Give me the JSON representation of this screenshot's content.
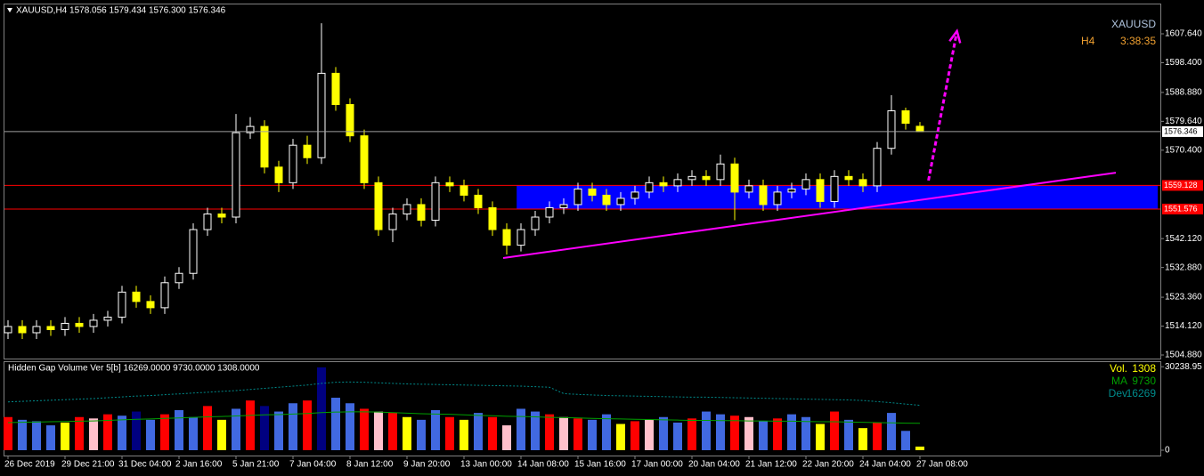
{
  "chart_data": [
    {
      "type": "candlestick",
      "title": "XAUUSD,H4 1578.056 1579.434 1576.300 1576.346",
      "symbol": "XAUUSD",
      "timeframe": "H4",
      "timer": "3:38:35",
      "categories": [
        "26 Dec 2019",
        null,
        null,
        null,
        "29 Dec 21:00",
        null,
        null,
        null,
        "31 Dec 04:00",
        null,
        null,
        null,
        "2 Jan 16:00",
        null,
        null,
        null,
        "5 Jan 21:00",
        null,
        null,
        null,
        "7 Jan 04:00",
        null,
        null,
        null,
        "8 Jan 12:00",
        null,
        null,
        null,
        "9 Jan 20:00",
        null,
        null,
        null,
        "13 Jan 00:00",
        null,
        null,
        null,
        "14 Jan 08:00",
        null,
        null,
        null,
        "15 Jan 16:00",
        null,
        null,
        null,
        "17 Jan 00:00",
        null,
        null,
        null,
        "20 Jan 04:00",
        null,
        null,
        null,
        "21 Jan 12:00",
        null,
        null,
        null,
        "22 Jan 20:00",
        null,
        null,
        null,
        "24 Jan 04:00",
        null,
        null,
        null,
        "27 Jan 08:00"
      ],
      "open": [
        1512,
        1514,
        1512,
        1514,
        1513,
        1515,
        1514,
        1516,
        1517,
        1525,
        1522,
        1520,
        1528,
        1531,
        1545,
        1550,
        1549,
        1576,
        1578,
        1565,
        1560,
        1572,
        1568,
        1595,
        1585,
        1575,
        1560,
        1545,
        1550,
        1553,
        1548,
        1560,
        1559,
        1556,
        1552,
        1545,
        1540,
        1545,
        1549,
        1552,
        1553,
        1558,
        1556,
        1553,
        1555,
        1557,
        1560,
        1559,
        1561,
        1562,
        1561,
        1566,
        1557,
        1559,
        1553,
        1557,
        1558,
        1561,
        1554,
        1562,
        1561,
        1559,
        1571,
        1583,
        1578.056
      ],
      "high": [
        1516,
        1516,
        1516,
        1516,
        1517,
        1517,
        1518,
        1519,
        1527,
        1527,
        1524,
        1530,
        1533,
        1547,
        1552,
        1552,
        1582,
        1581,
        1580,
        1567,
        1574,
        1575,
        1611,
        1597,
        1587,
        1577,
        1562,
        1552,
        1555,
        1555,
        1562,
        1562,
        1561,
        1558,
        1554,
        1547,
        1547,
        1551,
        1554,
        1555,
        1560,
        1560,
        1558,
        1557,
        1559,
        1562,
        1562,
        1563,
        1564,
        1564,
        1569,
        1568,
        1561,
        1561,
        1559,
        1560,
        1563,
        1563,
        1564,
        1564,
        1563,
        1573,
        1588,
        1584,
        1579.434
      ],
      "low": [
        1510,
        1510,
        1510,
        1511,
        1511,
        1512,
        1512,
        1514,
        1515,
        1520,
        1518,
        1518,
        1526,
        1529,
        1543,
        1547,
        1547,
        1574,
        1563,
        1557,
        1558,
        1566,
        1566,
        1583,
        1573,
        1558,
        1543,
        1541,
        1548,
        1546,
        1546,
        1557,
        1554,
        1550,
        1543,
        1537,
        1538,
        1543,
        1547,
        1550,
        1551,
        1554,
        1551,
        1551,
        1553,
        1555,
        1557,
        1557,
        1559,
        1559,
        1559,
        1548,
        1555,
        1551,
        1551,
        1555,
        1556,
        1552,
        1552,
        1559,
        1557,
        1557,
        1569,
        1577,
        1576.3
      ],
      "close": [
        1514,
        1512,
        1514,
        1513,
        1515,
        1514,
        1516,
        1517,
        1525,
        1522,
        1520,
        1528,
        1531,
        1545,
        1550,
        1549,
        1576,
        1578,
        1565,
        1560,
        1572,
        1568,
        1595,
        1585,
        1575,
        1560,
        1545,
        1550,
        1553,
        1548,
        1560,
        1559,
        1556,
        1552,
        1545,
        1540,
        1545,
        1549,
        1552,
        1553,
        1558,
        1556,
        1553,
        1555,
        1557,
        1560,
        1559,
        1561,
        1562,
        1561,
        1566,
        1557,
        1559,
        1553,
        1557,
        1558,
        1561,
        1554,
        1562,
        1561,
        1559,
        1571,
        1583,
        1579,
        1576.346
      ],
      "bull_color": "#ffffff",
      "bear_color": "#ffff00",
      "ylim": [
        1503.74,
        1617.03
      ],
      "yticks": [
        {
          "value": 1607.64,
          "label": "1607.640"
        },
        {
          "value": 1598.4,
          "label": "1598.400"
        },
        {
          "value": 1588.88,
          "label": "1588.880"
        },
        {
          "value": 1579.64,
          "label": "1579.640"
        },
        {
          "value": 1570.4,
          "label": "1570.400"
        },
        {
          "value": 1542.12,
          "label": "1542.120"
        },
        {
          "value": 1532.88,
          "label": "1532.880"
        },
        {
          "value": 1523.36,
          "label": "1523.360"
        },
        {
          "value": 1514.12,
          "label": "1514.120"
        },
        {
          "value": 1504.88,
          "label": "1504.880"
        }
      ],
      "levels": [
        {
          "value": 1559.128,
          "color": "#ff0000"
        },
        {
          "value": 1551.576,
          "color": "#ff0000"
        }
      ],
      "zone": {
        "start": 35.7,
        "color": "#0000ff"
      },
      "trendline": {
        "x": [
          34.75,
          77.75
        ],
        "y": [
          1535.9,
          1563.2
        ],
        "color": "#ff00ff"
      },
      "arrow": {
        "x": [
          64.6,
          66.6
        ],
        "y": [
          1560.7,
          1608.5
        ],
        "color": "#ff00ff"
      }
    },
    {
      "type": "bar",
      "title": "Hidden Gap Volume Ver 5[b] 16269.0000 9730.0000 1308.0000",
      "ylim": [
        0,
        31900
      ],
      "yticks": [
        30238.95,
        0
      ],
      "series": [
        {
          "name": "Vol.",
          "color": "#ffff00",
          "values": [
            12000,
            11000,
            10500,
            9000,
            10000,
            12000,
            11500,
            13000,
            12500,
            14000,
            11000,
            13000,
            14500,
            12000,
            16000,
            11000,
            15000,
            18000,
            16000,
            14000,
            17000,
            18000,
            30000,
            19000,
            17000,
            15000,
            14000,
            13500,
            12000,
            11000,
            14500,
            12000,
            11000,
            13500,
            12000,
            9000,
            15000,
            14000,
            13000,
            12000,
            11500,
            11000,
            13000,
            9500,
            10500,
            11000,
            12000,
            10000,
            11500,
            14000,
            13000,
            12500,
            12000,
            10500,
            11500,
            13000,
            12000,
            9500,
            14000,
            11000,
            8000,
            10000,
            13500,
            7000,
            1308
          ],
          "bar_colors": [
            "#ff0000",
            "#4169e1",
            "#4169e1",
            "#4169e1",
            "#ffff00",
            "#ff0000",
            "#ffc0cb",
            "#ff0000",
            "#4169e1",
            "#000080",
            "#4169e1",
            "#ff0000",
            "#4169e1",
            "#4169e1",
            "#ff0000",
            "#ffff00",
            "#4169e1",
            "#ff0000",
            "#000080",
            "#4169e1",
            "#4169e1",
            "#ff0000",
            "#000080",
            "#4169e1",
            "#4169e1",
            "#ff0000",
            "#ffc0cb",
            "#ff0000",
            "#ffff00",
            "#4169e1",
            "#4169e1",
            "#ff0000",
            "#ffff00",
            "#4169e1",
            "#ff0000",
            "#ffc0cb",
            "#4169e1",
            "#4169e1",
            "#ff0000",
            "#ffc0cb",
            "#ff0000",
            "#4169e1",
            "#4169e1",
            "#ffff00",
            "#ff0000",
            "#ffc0cb",
            "#4169e1",
            "#4169e1",
            "#ff0000",
            "#4169e1",
            "#4169e1",
            "#ff0000",
            "#ffc0cb",
            "#4169e1",
            "#ff0000",
            "#4169e1",
            "#4169e1",
            "#ffff00",
            "#ff0000",
            "#4169e1",
            "#ffff00",
            "#ff0000",
            "#4169e1",
            "#4169e1",
            "#ffff00"
          ]
        },
        {
          "name": "MA",
          "color": "#00a000",
          "type": "line",
          "values": [
            10000,
            10100,
            10200,
            10300,
            10400,
            10500,
            10600,
            10800,
            11000,
            11200,
            11300,
            11500,
            11700,
            11900,
            12100,
            12200,
            12400,
            12600,
            12800,
            12900,
            13100,
            13300,
            13600,
            13800,
            13900,
            13900,
            13800,
            13600,
            13400,
            13200,
            13100,
            13000,
            12800,
            12600,
            12500,
            12300,
            12200,
            12100,
            11900,
            11800,
            11700,
            11500,
            11400,
            11300,
            11200,
            11100,
            11000,
            10900,
            10800,
            10800,
            10700,
            10700,
            10600,
            10600,
            10500,
            10500,
            10400,
            10300,
            10300,
            10200,
            10100,
            10000,
            9900,
            9800,
            9730
          ]
        },
        {
          "name": "Dev",
          "color": "#008b8b",
          "type": "line",
          "dashed": true,
          "values": [
            17500,
            17700,
            17900,
            18100,
            18300,
            18500,
            18700,
            19000,
            19300,
            19600,
            19800,
            20100,
            20400,
            20700,
            21000,
            21300,
            21600,
            22000,
            22400,
            22800,
            23200,
            23600,
            24200,
            24600,
            24700,
            24600,
            24400,
            24200,
            24000,
            23900,
            23800,
            23700,
            23600,
            23500,
            23400,
            23300,
            23200,
            23000,
            22800,
            20500,
            20200,
            20000,
            19800,
            19700,
            19600,
            19500,
            19400,
            19300,
            19200,
            19200,
            19100,
            19000,
            18900,
            18800,
            18700,
            18600,
            18500,
            18400,
            18300,
            18200,
            18000,
            17600,
            17200,
            16700,
            16269
          ]
        }
      ]
    }
  ]
}
